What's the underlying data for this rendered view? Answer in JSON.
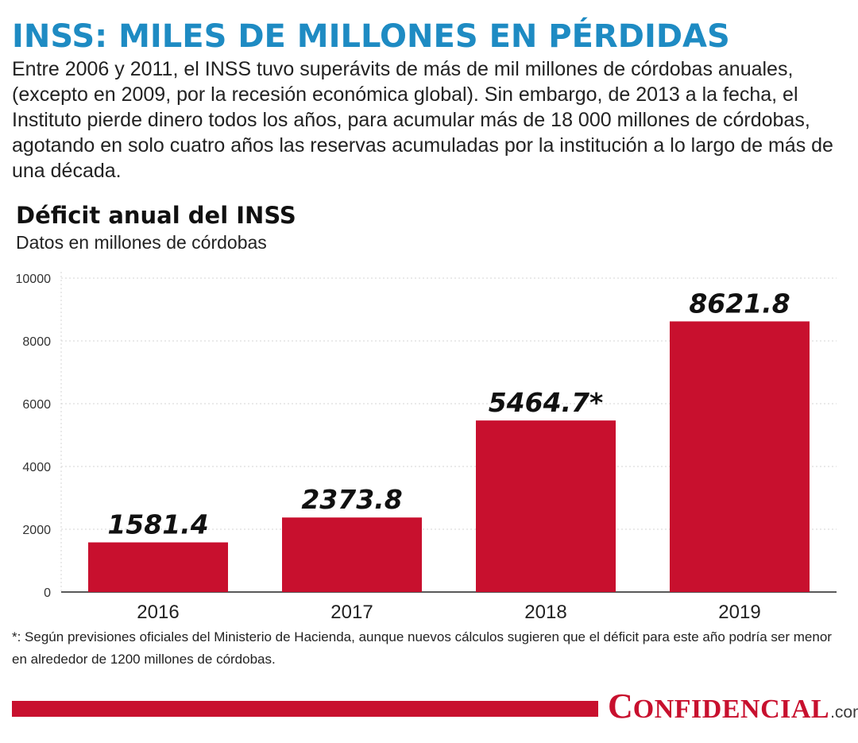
{
  "header": {
    "title": "INSS: MILES DE MILLONES EN PÉRDIDAS",
    "intro": "Entre 2006 y 2011, el INSS tuvo superávits de más de mil millones de córdobas anuales, (excepto en 2009, por la recesión económica global). Sin embargo, de 2013 a la fecha, el Instituto pierde dinero todos los años, para acumular más de 18 000 millones de córdobas, agotando en solo cuatro años las reservas acumuladas por la institución a lo largo de más de una década."
  },
  "chart_data": {
    "type": "bar",
    "title": "Déficit anual del INSS",
    "subtitle": "Datos en millones de córdobas",
    "categories": [
      "2016",
      "2017",
      "2018",
      "2019"
    ],
    "values": [
      1581.4,
      2373.8,
      5464.7,
      8621.8
    ],
    "data_labels": [
      "1581.4",
      "2373.8",
      "5464.7*",
      "8621.8"
    ],
    "ylim": [
      0,
      10000
    ],
    "yticks": [
      0,
      2000,
      4000,
      6000,
      8000,
      10000
    ],
    "xlabel": "",
    "ylabel": "",
    "grid": true,
    "bar_color": "#c8102e"
  },
  "footnote": "*: Según previsiones oficiales del Ministerio de Hacienda, aunque nuevos cálculos sugieren que el déficit para este año podría ser menor en alrededor de 1200 millones de córdobas.",
  "brand": {
    "first_letter": "C",
    "rest": "ONFIDENCIAL",
    "suffix": ".com.ni",
    "color": "#c8102e"
  }
}
